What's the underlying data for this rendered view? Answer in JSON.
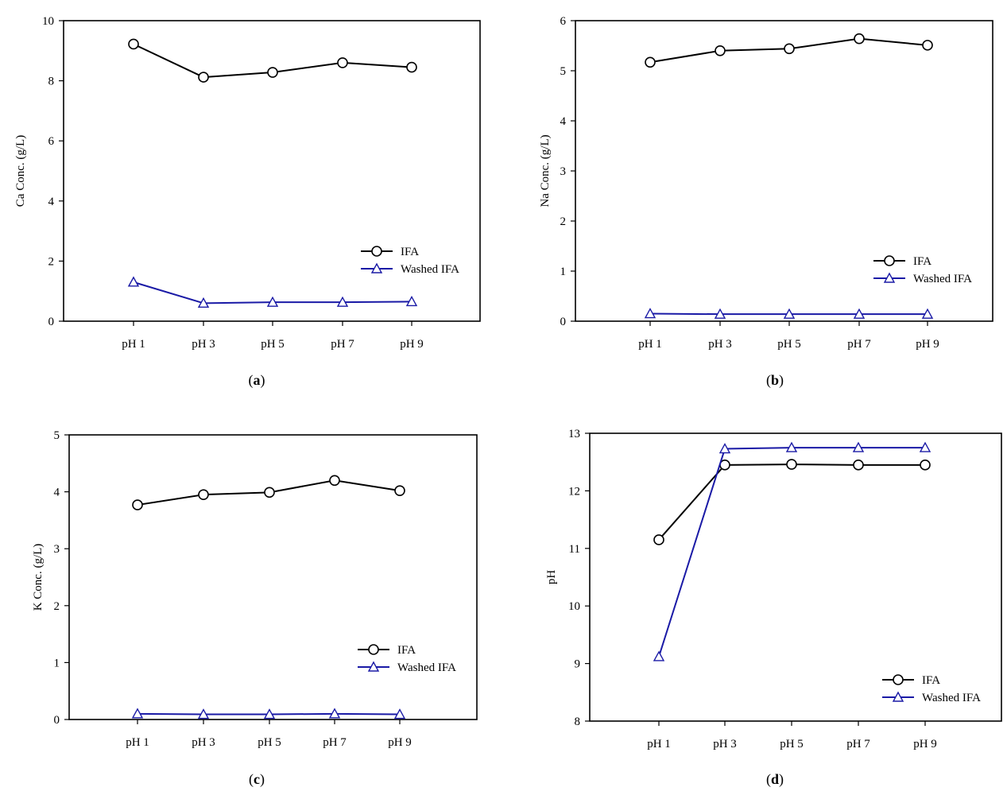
{
  "figure": {
    "panels": [
      {
        "id": "a",
        "caption_letter": "a"
      },
      {
        "id": "b",
        "caption_letter": "b"
      },
      {
        "id": "c",
        "caption_letter": "c"
      },
      {
        "id": "d",
        "caption_letter": "d"
      }
    ]
  },
  "colors": {
    "ifa": "#000000",
    "washed_ifa": "#1a1aa6",
    "frame": "#000000"
  },
  "chart_data": [
    {
      "type": "line",
      "panel": "a",
      "title": "",
      "categories": [
        "pH 1",
        "pH 3",
        "pH 5",
        "pH 7",
        "pH 9"
      ],
      "xlabel": "",
      "ylabel": "Ca Conc. (g/L)",
      "ylim": [
        0,
        10
      ],
      "yticks": [
        0,
        2,
        4,
        6,
        8,
        10
      ],
      "legend_position": "bottom-right",
      "series": [
        {
          "name": "IFA",
          "marker": "circle",
          "values": [
            9.22,
            8.12,
            8.28,
            8.6,
            8.45
          ]
        },
        {
          "name": "Washed IFA",
          "marker": "triangle",
          "values": [
            1.3,
            0.6,
            0.63,
            0.63,
            0.65
          ]
        }
      ]
    },
    {
      "type": "line",
      "panel": "b",
      "title": "",
      "categories": [
        "pH 1",
        "pH 3",
        "pH 5",
        "pH 7",
        "pH 9"
      ],
      "xlabel": "",
      "ylabel": "Na Conc. (g/L)",
      "ylim": [
        0,
        6
      ],
      "yticks": [
        0,
        1,
        2,
        3,
        4,
        5,
        6
      ],
      "legend_position": "bottom-right",
      "series": [
        {
          "name": "IFA",
          "marker": "circle",
          "values": [
            5.17,
            5.4,
            5.44,
            5.64,
            5.51
          ]
        },
        {
          "name": "Washed IFA",
          "marker": "triangle",
          "values": [
            0.15,
            0.14,
            0.14,
            0.14,
            0.14
          ]
        }
      ]
    },
    {
      "type": "line",
      "panel": "c",
      "title": "",
      "categories": [
        "pH 1",
        "pH 3",
        "pH 5",
        "pH 7",
        "pH 9"
      ],
      "xlabel": "",
      "ylabel": "K Conc. (g/L)",
      "ylim": [
        0,
        5
      ],
      "yticks": [
        0,
        1,
        2,
        3,
        4,
        5
      ],
      "legend_position": "bottom-right",
      "series": [
        {
          "name": "IFA",
          "marker": "circle",
          "values": [
            3.77,
            3.95,
            3.99,
            4.2,
            4.02
          ]
        },
        {
          "name": "Washed IFA",
          "marker": "triangle",
          "values": [
            0.1,
            0.09,
            0.09,
            0.1,
            0.09
          ]
        }
      ]
    },
    {
      "type": "line",
      "panel": "d",
      "title": "",
      "categories": [
        "pH 1",
        "pH 3",
        "pH 5",
        "pH 7",
        "pH 9"
      ],
      "xlabel": "",
      "ylabel": "pH",
      "ylim": [
        8,
        13
      ],
      "yticks": [
        8,
        9,
        10,
        11,
        12,
        13
      ],
      "legend_position": "bottom-right",
      "series": [
        {
          "name": "IFA",
          "marker": "circle",
          "values": [
            11.15,
            12.45,
            12.46,
            12.45,
            12.45
          ]
        },
        {
          "name": "Washed IFA",
          "marker": "triangle",
          "values": [
            9.12,
            12.73,
            12.75,
            12.75,
            12.75
          ]
        }
      ]
    }
  ]
}
